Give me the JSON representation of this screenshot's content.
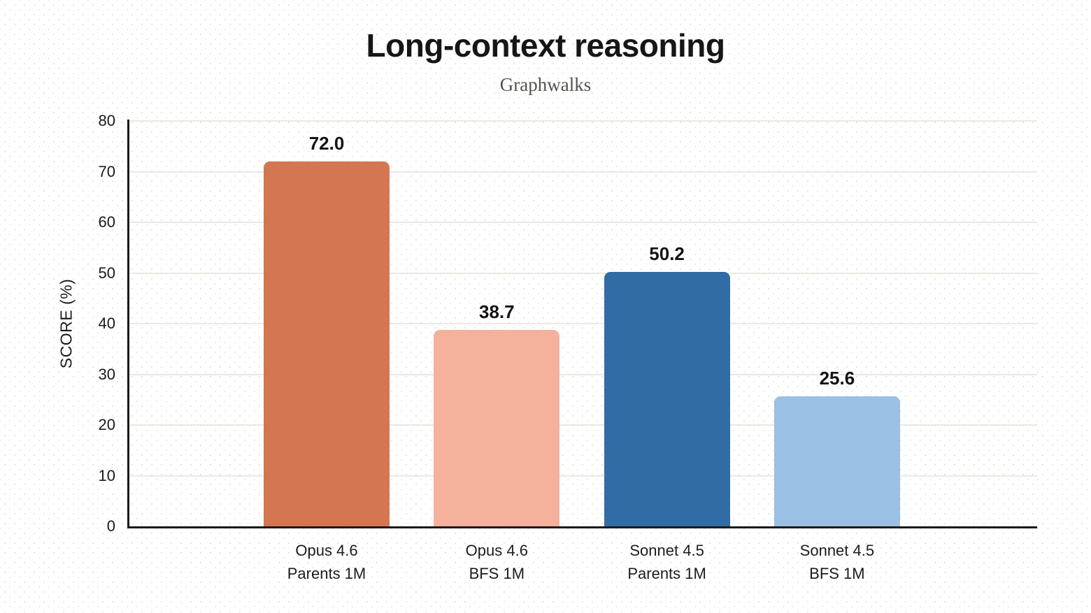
{
  "chart_data": {
    "type": "bar",
    "title": "Long-context reasoning",
    "subtitle": "Graphwalks",
    "ylabel": "SCORE (%)",
    "ylim": [
      0,
      80
    ],
    "yticks": [
      0,
      10,
      20,
      30,
      40,
      50,
      60,
      70,
      80
    ],
    "grid": "horizontal",
    "legend": "none",
    "categories": [
      [
        "Opus 4.6",
        "Parents 1M"
      ],
      [
        "Opus 4.6",
        "BFS 1M"
      ],
      [
        "Sonnet 4.5",
        "Parents 1M"
      ],
      [
        "Sonnet 4.5",
        "BFS 1M"
      ]
    ],
    "values": [
      72.0,
      38.7,
      50.2,
      25.6
    ],
    "value_labels": [
      "72.0",
      "38.7",
      "50.2",
      "25.6"
    ],
    "colors": [
      "#D47652",
      "#F4B19B",
      "#326CA5",
      "#9AC0E3"
    ],
    "axis_color": "#1a1a1a",
    "gridline_color": "#ebe9e3",
    "text_color": "#191919",
    "subtitle_color": "#55534f"
  }
}
